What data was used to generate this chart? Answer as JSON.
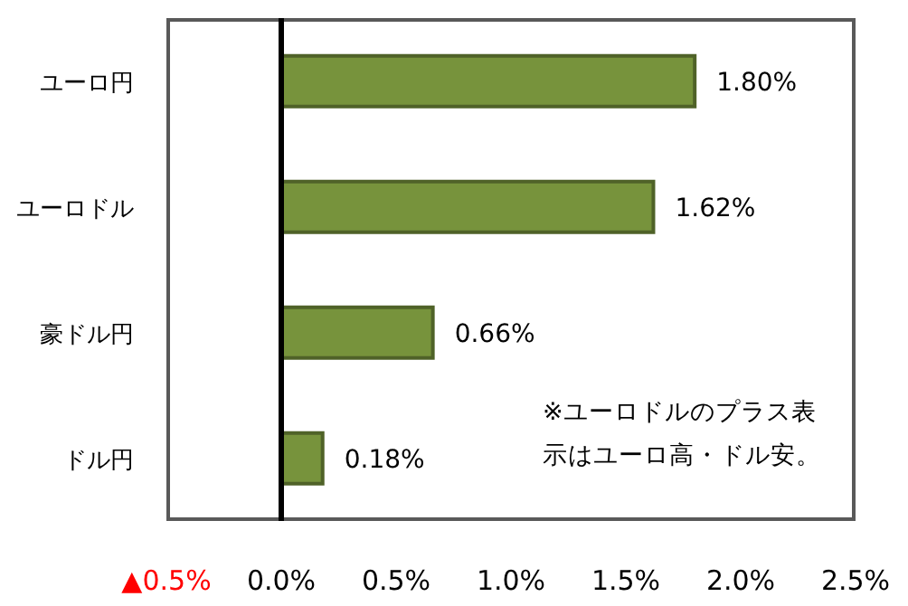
{
  "chart_data": {
    "type": "bar",
    "orientation": "horizontal",
    "categories": [
      "ユーロ円",
      "ユーロドル",
      "豪ドル円",
      "ドル円"
    ],
    "values": [
      1.8,
      1.62,
      0.66,
      0.18
    ],
    "value_labels": [
      "1.80%",
      "1.62%",
      "0.66%",
      "0.18%"
    ],
    "color": "#77933c",
    "xlim": [
      -0.5,
      2.5
    ],
    "xticks": [
      {
        "value": -0.5,
        "label": "▲0.5%"
      },
      {
        "value": 0,
        "label": "0.0%"
      },
      {
        "value": 0.5,
        "label": "0.5%"
      },
      {
        "value": 1,
        "label": "1.0%"
      },
      {
        "value": 1.5,
        "label": "1.5%"
      },
      {
        "value": 2,
        "label": "2.0%"
      },
      {
        "value": 2.5,
        "label": "2.5%"
      }
    ],
    "grid": false,
    "legend": false,
    "ref_lines": [
      {
        "axis": "x",
        "value": 0,
        "color": "#000000"
      }
    ],
    "annotations": [
      "※ユーロドルのプラス表示はユーロ高・ドル安。"
    ]
  }
}
